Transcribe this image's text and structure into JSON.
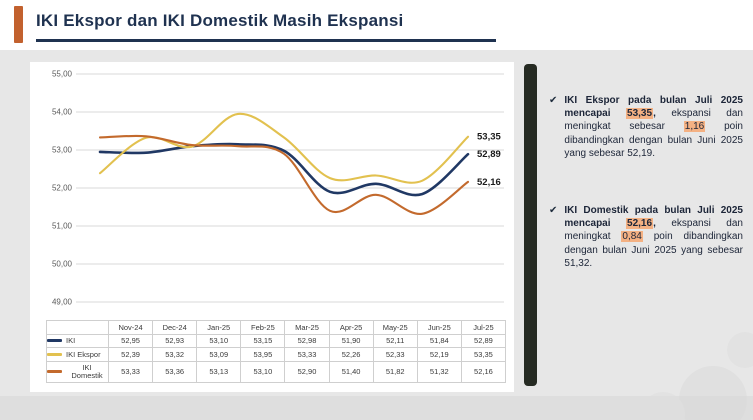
{
  "header": {
    "title": "IKI Ekspor dan IKI Domestik Masih Ekspansi",
    "accent_color": "#c2612e",
    "title_color": "#1f3250"
  },
  "chart_data": {
    "type": "line",
    "title": "",
    "categories": [
      "Nov-24",
      "Dec-24",
      "Jan-25",
      "Feb-25",
      "Mar-25",
      "Apr-25",
      "May-25",
      "Jun-25",
      "Jul-25"
    ],
    "series": [
      {
        "name": "IKI",
        "color": "#203864",
        "values": [
          52.95,
          52.93,
          53.1,
          53.15,
          52.98,
          51.9,
          52.11,
          51.84,
          52.89
        ],
        "end_label": "52,89"
      },
      {
        "name": "IKI Ekspor",
        "color": "#e2c14f",
        "values": [
          52.39,
          53.32,
          53.09,
          53.95,
          53.33,
          52.26,
          52.33,
          52.19,
          53.35
        ],
        "end_label": "53,35"
      },
      {
        "name": "IKI Domestik",
        "color": "#c36a2d",
        "values": [
          53.33,
          53.36,
          53.13,
          53.1,
          52.9,
          51.4,
          51.82,
          51.32,
          52.16
        ],
        "end_label": "52,16"
      }
    ],
    "ylim": [
      49,
      55
    ],
    "y_ticks": [
      "55,00",
      "54,00",
      "53,00",
      "52,00",
      "51,00",
      "50,00",
      "49,00"
    ],
    "grid": true,
    "legend_position": "data-table-left-column"
  },
  "panel": {
    "check_icon": "✔",
    "highlight_color": "#f4b183",
    "bullets": [
      {
        "segments": [
          {
            "text": "IKI Ekspor pada bulan Juli 2025 mencapai ",
            "bold": true,
            "highlight": false
          },
          {
            "text": "53,35",
            "bold": true,
            "highlight": true
          },
          {
            "text": ", ",
            "bold": true,
            "highlight": false
          },
          {
            "text": "ekspansi dan meningkat sebesar ",
            "bold": false,
            "highlight": false
          },
          {
            "text": "1,16",
            "bold": false,
            "highlight": true
          },
          {
            "text": " poin dibandingkan dengan bulan Juni 2025 yang sebesar 52,19.",
            "bold": false,
            "highlight": false
          }
        ]
      },
      {
        "segments": [
          {
            "text": "IKI Domestik pada bulan Juli 2025 mencapai ",
            "bold": true,
            "highlight": false
          },
          {
            "text": "52,16",
            "bold": true,
            "highlight": true
          },
          {
            "text": ", ",
            "bold": true,
            "highlight": false
          },
          {
            "text": "ekspansi dan meningkat ",
            "bold": false,
            "highlight": false
          },
          {
            "text": "0,84",
            "bold": false,
            "highlight": true
          },
          {
            "text": " poin dibandingkan dengan bulan Juni 2025 yang sebesar 51,32.",
            "bold": false,
            "highlight": false
          }
        ]
      }
    ]
  }
}
